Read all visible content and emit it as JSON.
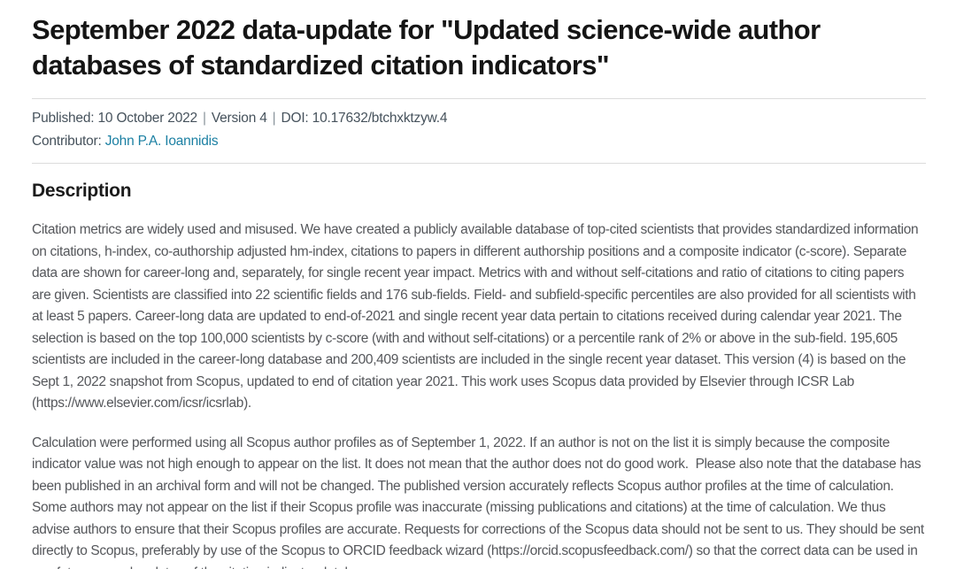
{
  "page": {
    "title": "September 2022 data-update for \"Updated science-wide author databases of standardized citation indicators\""
  },
  "meta": {
    "published_label": "Published:",
    "published_date": "10 October 2022",
    "separator": "|",
    "version": "Version 4",
    "doi_label": "DOI:",
    "doi_value": "10.17632/btchxktzyw.4",
    "contributor_label": "Contributor:",
    "contributor_name": "John P.A. Ioannidis"
  },
  "description": {
    "heading": "Description",
    "paragraphs": [
      "Citation metrics are widely used and misused. We have created a publicly available database of top-cited scientists that provides standardized information on citations, h-index, co-authorship adjusted hm-index, citations to papers in different authorship positions and a composite indicator (c-score). Separate data are shown for career-long and, separately, for single recent year impact. Metrics with and without self-citations and ratio of citations to citing papers are given. Scientists are classified into 22 scientific fields and 176 sub-fields. Field- and subfield-specific percentiles are also provided for all scientists with at least 5 papers. Career-long data are updated to end-of-2021 and single recent year data pertain to citations received during calendar year 2021. The selection is based on the top 100,000 scientists by c-score (with and without self-citations) or a percentile rank of 2% or above in the sub-field. 195,605 scientists are included in the career-long database and 200,409 scientists are included in the single recent year dataset. This version (4) is based on the Sept 1, 2022 snapshot from Scopus, updated to end of citation year 2021. This work uses Scopus data provided by Elsevier through ICSR Lab (https://www.elsevier.com/icsr/icsrlab).",
      "Calculation were performed using all Scopus author profiles as of September 1, 2022. If an author is not on the list it is simply because the composite indicator value was not high enough to appear on the list. It does not mean that the author does not do good work.  Please also note that the database has been published in an archival form and will not be changed. The published version accurately reflects Scopus author profiles at the time of calculation.  Some authors may not appear on the list if their Scopus profile was inaccurate (missing publications and citations) at the time of calculation. We thus advise authors to ensure that their Scopus profiles are accurate. Requests for corrections of the Scopus data should not be sent to us. They should be sent directly to Scopus, preferably by use of the Scopus to ORCID feedback wizard (https://orcid.scopusfeedback.com/) so that the correct data can be used in any future annual updates of the citation indicator databases."
    ]
  },
  "colors": {
    "background": "#ffffff",
    "title_text": "#151515",
    "meta_text": "#46525c",
    "body_text": "#55575b",
    "link": "#1c80a3",
    "divider": "#dcdcdc"
  }
}
